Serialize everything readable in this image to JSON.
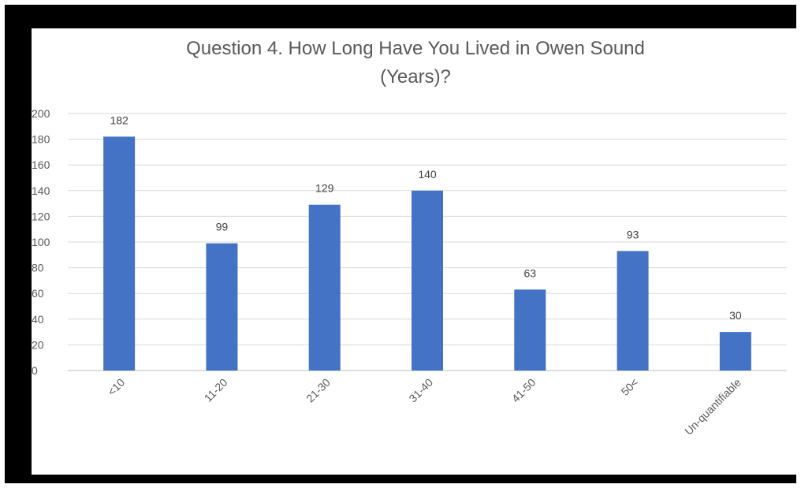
{
  "chart_data": {
    "type": "bar",
    "title_line1": "Question 4. How Long Have You Lived in Owen Sound",
    "title_line2": "(Years)?",
    "categories": [
      "<10",
      "11-20",
      "21-30",
      "31-40",
      "41-50",
      "50<",
      "Un-quantifiable"
    ],
    "values": [
      182,
      99,
      129,
      140,
      63,
      93,
      30
    ],
    "ylim": [
      0,
      200
    ],
    "yticks": [
      0,
      20,
      40,
      60,
      80,
      100,
      120,
      140,
      160,
      180,
      200
    ],
    "grid": true,
    "xlabel": "",
    "ylabel": "",
    "bar_color": "#4472c4",
    "gridline_color": "#d9d9d9",
    "text_color": "#595959"
  }
}
